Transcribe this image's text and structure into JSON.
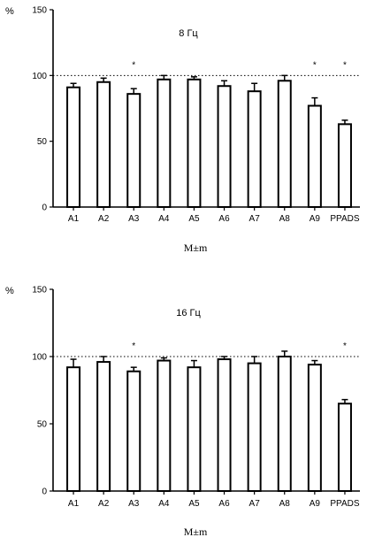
{
  "chart_data": [
    {
      "type": "bar",
      "title": "8 Гц",
      "ylabel": "%",
      "xlabel": "",
      "ylim": [
        0,
        150
      ],
      "yticks": [
        0,
        50,
        100,
        150
      ],
      "reference_line": 100,
      "categories": [
        "A1",
        "A2",
        "A3",
        "A4",
        "A5",
        "A6",
        "A7",
        "A8",
        "A9",
        "PPADS"
      ],
      "values": [
        91,
        95,
        86,
        97,
        97,
        92,
        88,
        96,
        77,
        63
      ],
      "errors": [
        3,
        3,
        4,
        3,
        2,
        4,
        6,
        4,
        6,
        3
      ],
      "significance": [
        "",
        "",
        "*",
        "",
        "",
        "",
        "",
        "",
        "*",
        "*"
      ],
      "caption": "M±m"
    },
    {
      "type": "bar",
      "title": "16 Гц",
      "ylabel": "%",
      "xlabel": "",
      "ylim": [
        0,
        150
      ],
      "yticks": [
        0,
        50,
        100,
        150
      ],
      "reference_line": 100,
      "categories": [
        "A1",
        "A2",
        "A3",
        "A4",
        "A5",
        "A6",
        "A7",
        "A8",
        "A9",
        "PPADS"
      ],
      "values": [
        92,
        96,
        89,
        97,
        92,
        98,
        95,
        100,
        94,
        65
      ],
      "errors": [
        6,
        4,
        3,
        2,
        5,
        2,
        5,
        4,
        3,
        3
      ],
      "significance": [
        "",
        "",
        "*",
        "",
        "",
        "",
        "",
        "",
        "",
        "*"
      ],
      "caption": "M±m"
    }
  ]
}
